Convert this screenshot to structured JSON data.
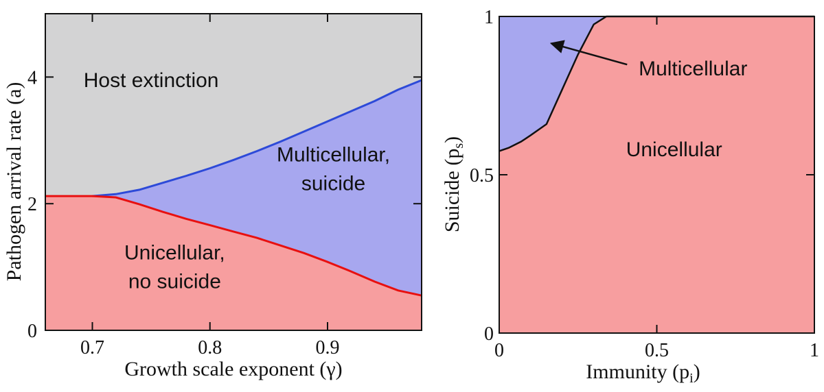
{
  "colors": {
    "extinction": "#d3d3d4",
    "multicellular": "#a7a7ef",
    "unicellular": "#f79e9f",
    "blue_line": "#2d4ad8",
    "red_line": "#e81010",
    "frame": "#111111"
  },
  "chart_data": [
    {
      "type": "area",
      "xlabel": "Growth scale exponent (γ)",
      "ylabel": "Pathogen arrival rate (a)",
      "xlim": [
        0.66,
        0.98
      ],
      "ylim": [
        0,
        5
      ],
      "x_ticks": [
        "0.7",
        "0.8",
        "0.9"
      ],
      "y_ticks": [
        "0",
        "2",
        "4"
      ],
      "x_tick_values": [
        0.7,
        0.8,
        0.9
      ],
      "y_tick_values": [
        0,
        2,
        4
      ],
      "grid": false,
      "series": [
        {
          "name": "upper boundary",
          "color": "blue_line",
          "points": [
            [
              0.66,
              2.12
            ],
            [
              0.7,
              2.12
            ],
            [
              0.72,
              2.15
            ],
            [
              0.74,
              2.22
            ],
            [
              0.76,
              2.33
            ],
            [
              0.78,
              2.44
            ],
            [
              0.8,
              2.56
            ],
            [
              0.82,
              2.69
            ],
            [
              0.84,
              2.83
            ],
            [
              0.86,
              2.98
            ],
            [
              0.88,
              3.14
            ],
            [
              0.9,
              3.3
            ],
            [
              0.92,
              3.46
            ],
            [
              0.94,
              3.62
            ],
            [
              0.96,
              3.8
            ],
            [
              0.98,
              3.95
            ]
          ]
        },
        {
          "name": "lower boundary",
          "color": "red_line",
          "points": [
            [
              0.66,
              2.12
            ],
            [
              0.7,
              2.12
            ],
            [
              0.72,
              2.1
            ],
            [
              0.74,
              1.99
            ],
            [
              0.76,
              1.87
            ],
            [
              0.78,
              1.76
            ],
            [
              0.8,
              1.66
            ],
            [
              0.82,
              1.56
            ],
            [
              0.84,
              1.46
            ],
            [
              0.86,
              1.34
            ],
            [
              0.88,
              1.22
            ],
            [
              0.9,
              1.08
            ],
            [
              0.92,
              0.93
            ],
            [
              0.94,
              0.77
            ],
            [
              0.96,
              0.63
            ],
            [
              0.98,
              0.55
            ]
          ]
        }
      ],
      "regions": [
        {
          "label": "Host extinction",
          "lines": [
            "Host extinction"
          ],
          "color": "extinction",
          "at": [
            0.75,
            3.95
          ]
        },
        {
          "label": "Multicellular, suicide",
          "lines": [
            "Multicellular,",
            "suicide"
          ],
          "color": "multicellular",
          "at": [
            0.905,
            2.55
          ]
        },
        {
          "label": "Unicellular, no suicide",
          "lines": [
            "Unicellular,",
            "no suicide"
          ],
          "color": "unicellular",
          "at": [
            0.77,
            1.0
          ]
        }
      ]
    },
    {
      "type": "area",
      "xlabel": "Immunity (p",
      "xlabel_sub": "i",
      "ylabel": "Suicide (p",
      "ylabel_sub": "s",
      "xlim": [
        0,
        1
      ],
      "ylim": [
        0,
        1
      ],
      "x_ticks": [
        "0",
        "0.5",
        "1"
      ],
      "y_ticks": [
        "0",
        "0.5",
        "1"
      ],
      "x_tick_values": [
        0,
        0.5,
        1
      ],
      "y_tick_values": [
        0,
        0.5,
        1
      ],
      "grid": false,
      "series": [
        {
          "name": "boundary",
          "color": "frame",
          "points": [
            [
              0,
              0.575
            ],
            [
              0.03,
              0.585
            ],
            [
              0.07,
              0.605
            ],
            [
              0.1,
              0.625
            ],
            [
              0.15,
              0.66
            ],
            [
              0.2,
              0.77
            ],
            [
              0.25,
              0.88
            ],
            [
              0.3,
              0.975
            ],
            [
              0.34,
              1.0
            ],
            [
              1.0,
              1.0
            ]
          ]
        }
      ],
      "regions": [
        {
          "label": "Multicellular",
          "lines": [
            "Multicellular"
          ],
          "color": "multicellular",
          "at": [
            0.615,
            0.835
          ],
          "arrow_to": [
            0.165,
            0.915
          ]
        },
        {
          "label": "Unicellular",
          "lines": [
            "Unicellular"
          ],
          "color": "unicellular",
          "at": [
            0.555,
            0.58
          ]
        }
      ]
    }
  ]
}
